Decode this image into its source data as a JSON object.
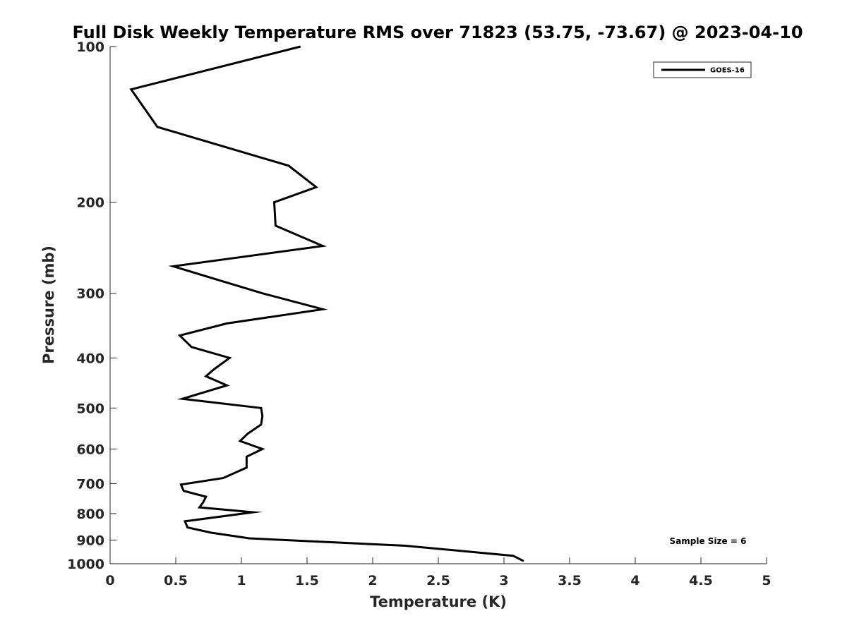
{
  "chart_data": {
    "type": "line",
    "title": "Full Disk Weekly Temperature RMS over 71823 (53.75, -73.67) @ 2023-04-10",
    "xlabel": "Temperature (K)",
    "ylabel": "Pressure (mb)",
    "xlim": [
      0,
      5
    ],
    "ylim": [
      100,
      1000
    ],
    "yscale": "log",
    "y_reversed": true,
    "grid": false,
    "legend_position": "top-right",
    "x_ticks": [
      "0",
      "0.5",
      "1",
      "1.5",
      "2",
      "2.5",
      "3",
      "3.5",
      "4",
      "4.5",
      "5"
    ],
    "y_ticks": [
      "100",
      "200",
      "300",
      "400",
      "500",
      "600",
      "700",
      "800",
      "900",
      "1000"
    ],
    "series": [
      {
        "name": "GOES-16",
        "color": "#000000",
        "x": [
          1.45,
          0.16,
          0.36,
          1.36,
          1.57,
          1.25,
          1.26,
          1.62,
          0.48,
          0.85,
          1.16,
          1.62,
          0.89,
          0.53,
          0.62,
          0.91,
          0.79,
          0.73,
          0.89,
          0.55,
          1.15,
          1.16,
          1.15,
          1.05,
          0.99,
          1.16,
          1.04,
          1.04,
          0.86,
          0.54,
          0.56,
          0.73,
          0.71,
          0.68,
          1.09,
          0.57,
          0.59,
          0.77,
          1.06,
          2.25,
          3.07,
          3.15
        ],
        "y": [
          100,
          121,
          143,
          170,
          187,
          200,
          222,
          243,
          266,
          284,
          300,
          322,
          343,
          362,
          381,
          400,
          421,
          434,
          452,
          480,
          500,
          518,
          538,
          560,
          579,
          600,
          621,
          652,
          683,
          703,
          723,
          742,
          760,
          778,
          795,
          828,
          851,
          871,
          893,
          923,
          965,
          988
        ]
      }
    ],
    "annotations": [
      "Sample Size = 6"
    ]
  }
}
